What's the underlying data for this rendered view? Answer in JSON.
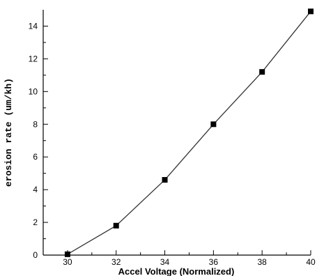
{
  "chart_data": {
    "type": "line",
    "title": "",
    "xlabel": "Accel Voltage (Normalized)",
    "ylabel": "erosion rate (um/kh)",
    "xlim": [
      29,
      40
    ],
    "ylim": [
      0,
      15
    ],
    "x_ticks": [
      30,
      32,
      34,
      36,
      38,
      40
    ],
    "y_ticks": [
      0,
      2,
      4,
      6,
      8,
      10,
      12,
      14
    ],
    "grid": false,
    "legend": "none",
    "marker": "square",
    "line_color": "#333333",
    "marker_color": "#000000",
    "series": [
      {
        "x": [
          30,
          32,
          34,
          36,
          38,
          40
        ],
        "values": [
          0.05,
          1.8,
          4.6,
          8.0,
          11.2,
          14.9
        ]
      }
    ]
  }
}
